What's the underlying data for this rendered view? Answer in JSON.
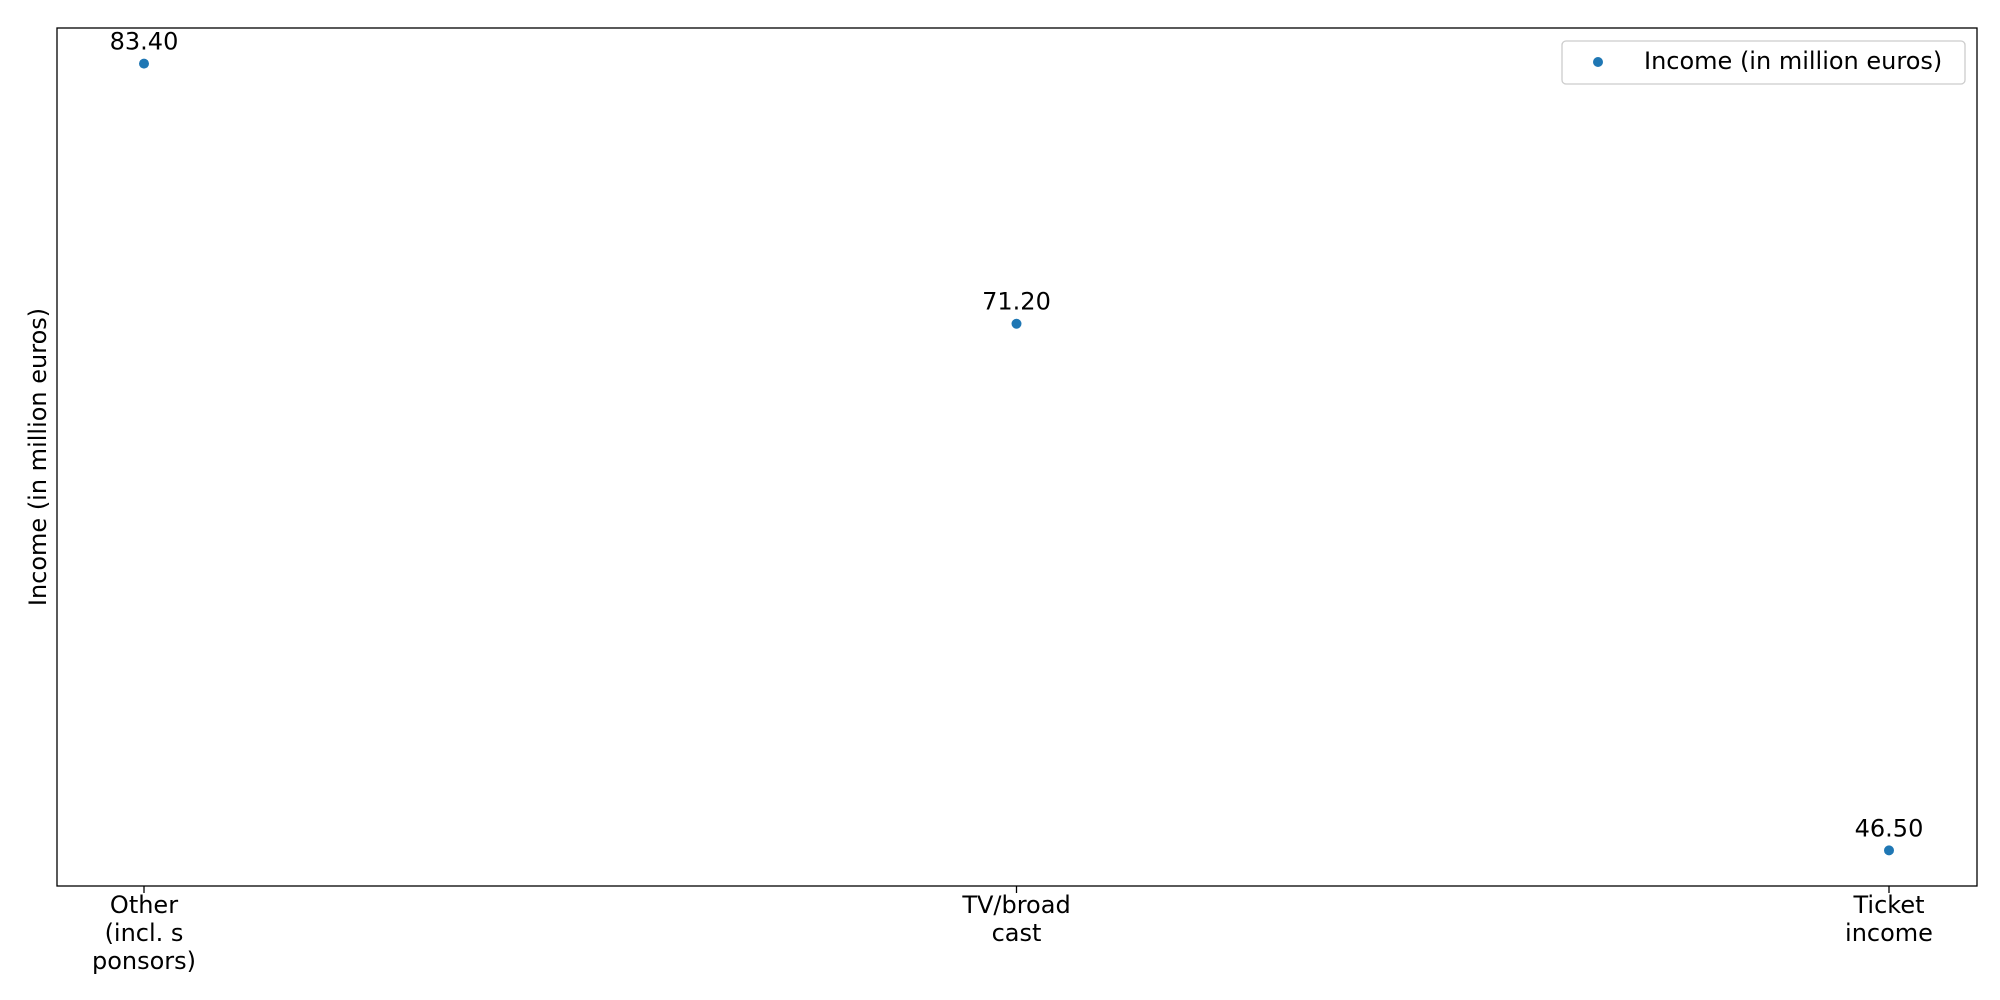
{
  "chart_data": {
    "type": "scatter",
    "categories": [
      [
        "Other",
        "(incl. s",
        "ponsors)"
      ],
      [
        "TV/broad",
        "cast"
      ],
      [
        "Ticket",
        "income"
      ]
    ],
    "series": [
      {
        "name": "Income (in million euros)",
        "values": [
          83.4,
          71.2,
          46.5
        ],
        "data_labels": [
          "83.40",
          "71.20",
          "46.50"
        ]
      }
    ],
    "xlabel": "",
    "ylabel": "Income (in million euros)",
    "ylim": [
      44.83,
      85.07
    ],
    "y_ticks_shown": false,
    "grid": false,
    "legend": {
      "position": "top-right",
      "entries": [
        "Income (in million euros)"
      ]
    },
    "colors": {
      "marker": "#1f77b4",
      "axes": "#000000",
      "legend_border": "#cccccc"
    }
  }
}
